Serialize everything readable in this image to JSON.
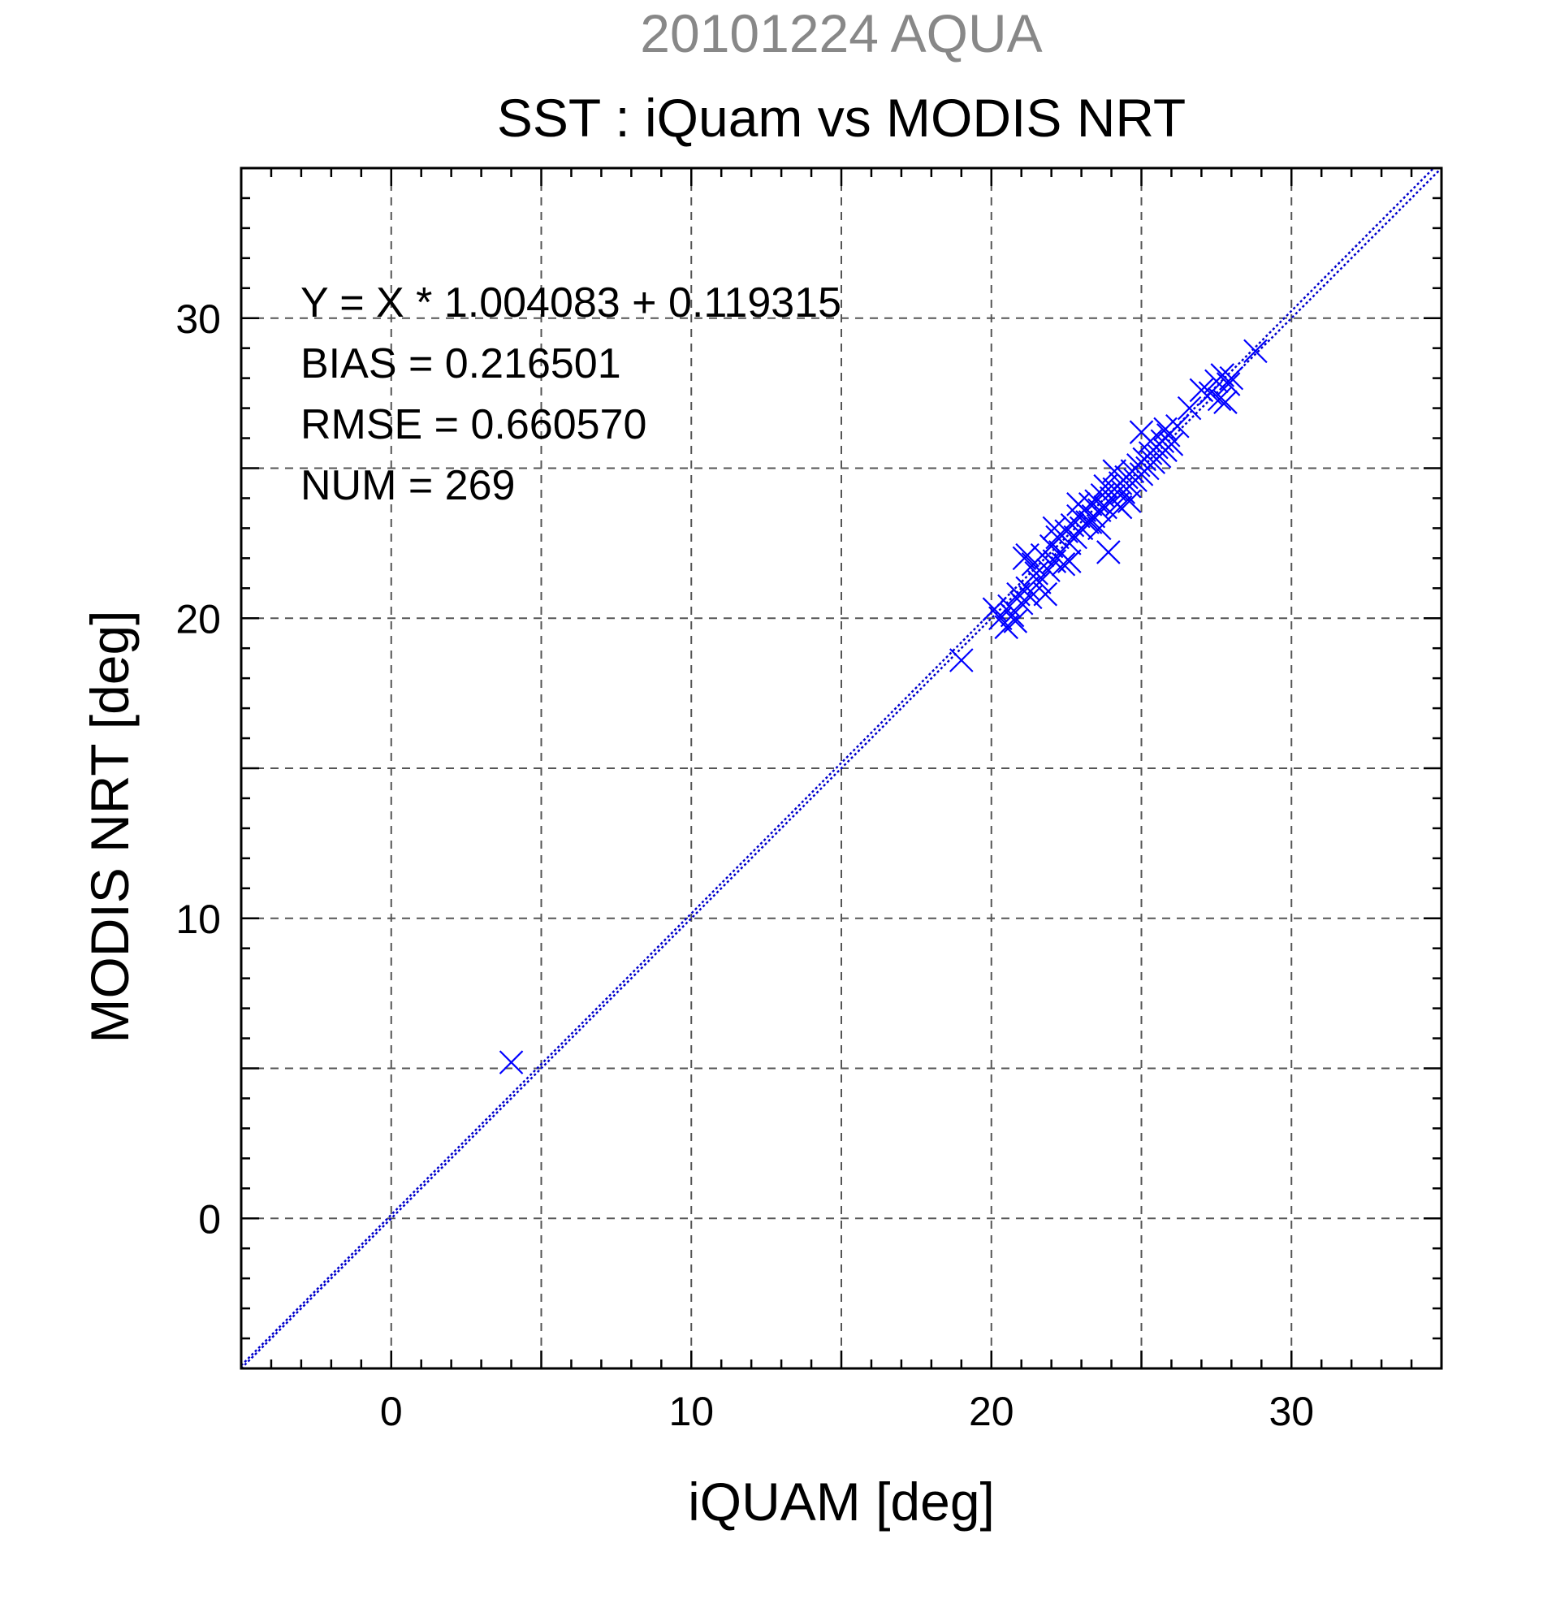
{
  "chart_data": {
    "type": "scatter",
    "title": "SST : iQuam vs MODIS NRT",
    "subtitle": "20101224 AQUA",
    "xlabel": "iQUAM [deg]",
    "ylabel": "MODIS NRT [deg]",
    "xlim": [
      -5,
      35
    ],
    "ylim": [
      -5,
      35
    ],
    "xticks": [
      0,
      10,
      20,
      30
    ],
    "yticks": [
      0,
      10,
      20,
      30
    ],
    "grid": true,
    "marker_color": "#0000ff",
    "line_color": "#0000cc",
    "marker": "x",
    "stats": {
      "equation": "Y = X * 1.004083 + 0.119315",
      "bias": "BIAS = 0.216501",
      "rmse": "RMSE = 0.660570",
      "num": "NUM = 269"
    },
    "fit": {
      "slope": 1.004083,
      "intercept": 0.119315
    },
    "points": [
      [
        4.0,
        5.2
      ],
      [
        19.0,
        18.6
      ],
      [
        20.1,
        20.3
      ],
      [
        20.3,
        20.0
      ],
      [
        20.5,
        19.7
      ],
      [
        20.6,
        20.4
      ],
      [
        20.7,
        20.1
      ],
      [
        20.8,
        19.9
      ],
      [
        20.9,
        20.8
      ],
      [
        21.0,
        20.5
      ],
      [
        21.1,
        22.0
      ],
      [
        21.2,
        21.0
      ],
      [
        21.3,
        20.7
      ],
      [
        21.4,
        21.8
      ],
      [
        21.5,
        21.5
      ],
      [
        21.6,
        21.2
      ],
      [
        21.7,
        22.1
      ],
      [
        21.8,
        20.8
      ],
      [
        21.9,
        21.6
      ],
      [
        22.0,
        22.4
      ],
      [
        22.1,
        21.9
      ],
      [
        22.2,
        22.7
      ],
      [
        22.3,
        22.2
      ],
      [
        22.4,
        21.8
      ],
      [
        22.5,
        22.9
      ],
      [
        22.6,
        22.5
      ],
      [
        22.7,
        23.1
      ],
      [
        22.8,
        22.7
      ],
      [
        22.9,
        23.4
      ],
      [
        23.0,
        23.0
      ],
      [
        23.1,
        23.6
      ],
      [
        23.2,
        23.2
      ],
      [
        23.3,
        23.8
      ],
      [
        23.4,
        23.4
      ],
      [
        23.5,
        23.9
      ],
      [
        23.6,
        23.6
      ],
      [
        23.7,
        24.1
      ],
      [
        23.8,
        23.7
      ],
      [
        23.9,
        22.2
      ],
      [
        24.0,
        24.0
      ],
      [
        24.1,
        24.3
      ],
      [
        24.2,
        23.8
      ],
      [
        24.3,
        24.5
      ],
      [
        24.4,
        24.2
      ],
      [
        24.5,
        24.7
      ],
      [
        24.6,
        24.4
      ],
      [
        24.7,
        24.9
      ],
      [
        24.8,
        24.6
      ],
      [
        24.9,
        25.1
      ],
      [
        25.0,
        24.8
      ],
      [
        25.0,
        26.2
      ],
      [
        25.1,
        25.3
      ],
      [
        25.2,
        25.0
      ],
      [
        25.3,
        25.5
      ],
      [
        25.4,
        25.2
      ],
      [
        25.5,
        25.7
      ],
      [
        25.6,
        25.4
      ],
      [
        25.7,
        25.9
      ],
      [
        25.8,
        25.6
      ],
      [
        25.9,
        26.1
      ],
      [
        26.0,
        25.8
      ],
      [
        26.2,
        26.4
      ],
      [
        26.6,
        27.0
      ],
      [
        27.0,
        27.6
      ],
      [
        27.3,
        27.5
      ],
      [
        27.5,
        27.9
      ],
      [
        27.6,
        27.3
      ],
      [
        27.7,
        28.1
      ],
      [
        27.8,
        27.2
      ],
      [
        27.9,
        27.8
      ],
      [
        28.0,
        28.0
      ],
      [
        28.8,
        28.9
      ],
      [
        21.2,
        22.1
      ],
      [
        22.6,
        21.9
      ],
      [
        23.3,
        23.2
      ],
      [
        24.1,
        24.9
      ],
      [
        25.3,
        25.9
      ],
      [
        23.8,
        24.4
      ],
      [
        22.1,
        23.0
      ],
      [
        24.6,
        23.9
      ],
      [
        23.6,
        23.0
      ],
      [
        25.8,
        26.3
      ],
      [
        22.9,
        23.8
      ],
      [
        24.3,
        23.7
      ]
    ]
  }
}
